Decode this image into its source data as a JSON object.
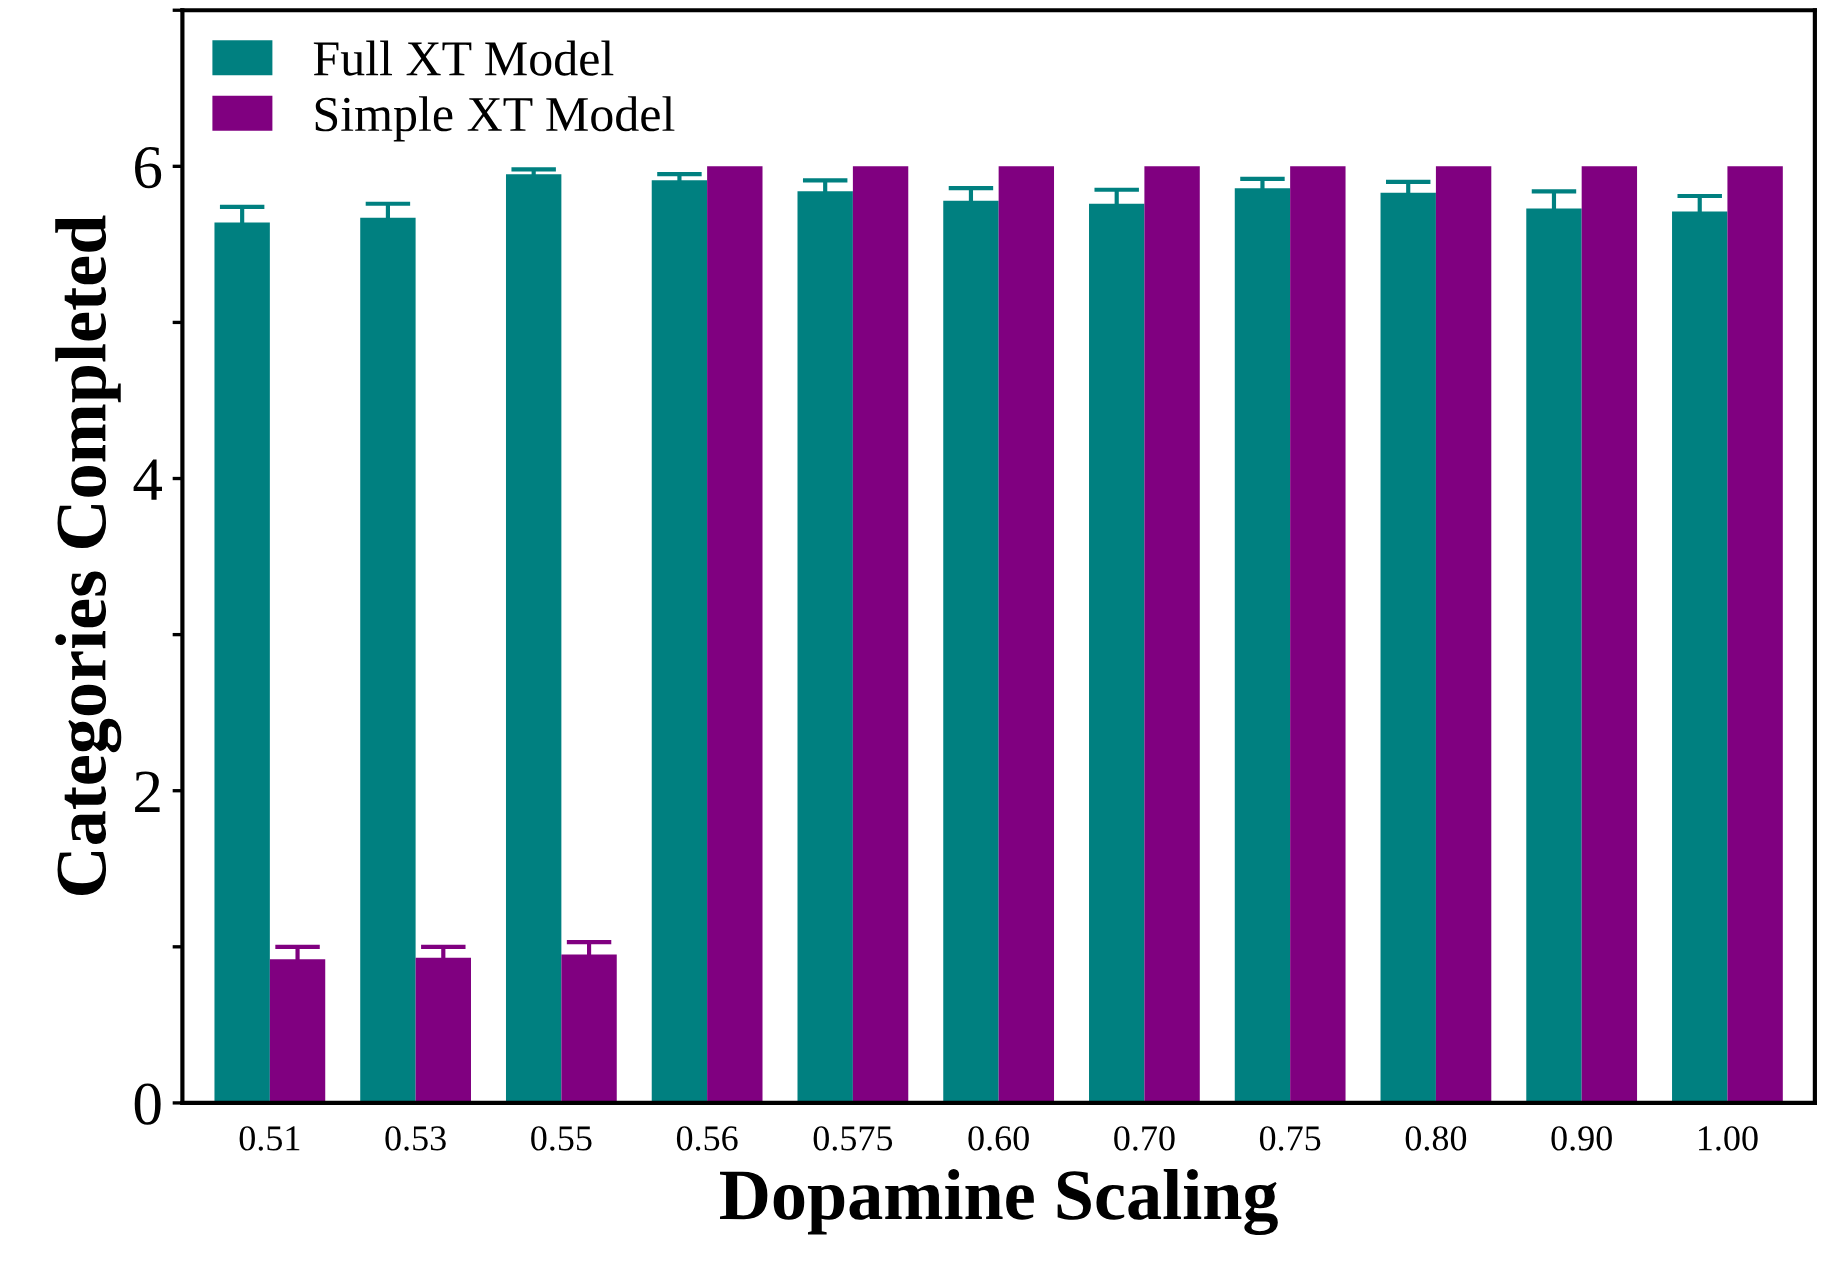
{
  "chart_data": {
    "type": "bar",
    "xlabel": "Dopamine Scaling",
    "ylabel": "Categories Completed",
    "categories": [
      "0.51",
      "0.53",
      "0.55",
      "0.56",
      "0.575",
      "0.60",
      "0.70",
      "0.75",
      "0.80",
      "0.90",
      "1.00"
    ],
    "series": [
      {
        "name": "Full XT Model",
        "color": "#008080",
        "values": [
          5.64,
          5.67,
          5.95,
          5.91,
          5.84,
          5.78,
          5.76,
          5.86,
          5.83,
          5.73,
          5.71
        ],
        "errors": [
          0.1,
          0.09,
          0.03,
          0.04,
          0.07,
          0.08,
          0.09,
          0.06,
          0.07,
          0.11,
          0.1
        ]
      },
      {
        "name": "Simple XT Model",
        "color": "#800080",
        "values": [
          0.92,
          0.93,
          0.95,
          6,
          6,
          6,
          6,
          6,
          6,
          6,
          6
        ],
        "errors": [
          0.08,
          0.07,
          0.08,
          null,
          null,
          null,
          null,
          null,
          null,
          null,
          null
        ]
      }
    ],
    "ylim": [
      0,
      7
    ],
    "yticks": [
      0,
      {
        "value": 1,
        "label": null
      },
      2,
      {
        "value": 3,
        "label": null
      },
      4,
      {
        "value": 5,
        "label": null
      },
      6,
      {
        "value": 7,
        "label": null
      }
    ],
    "legend": "top left",
    "grid": false
  }
}
